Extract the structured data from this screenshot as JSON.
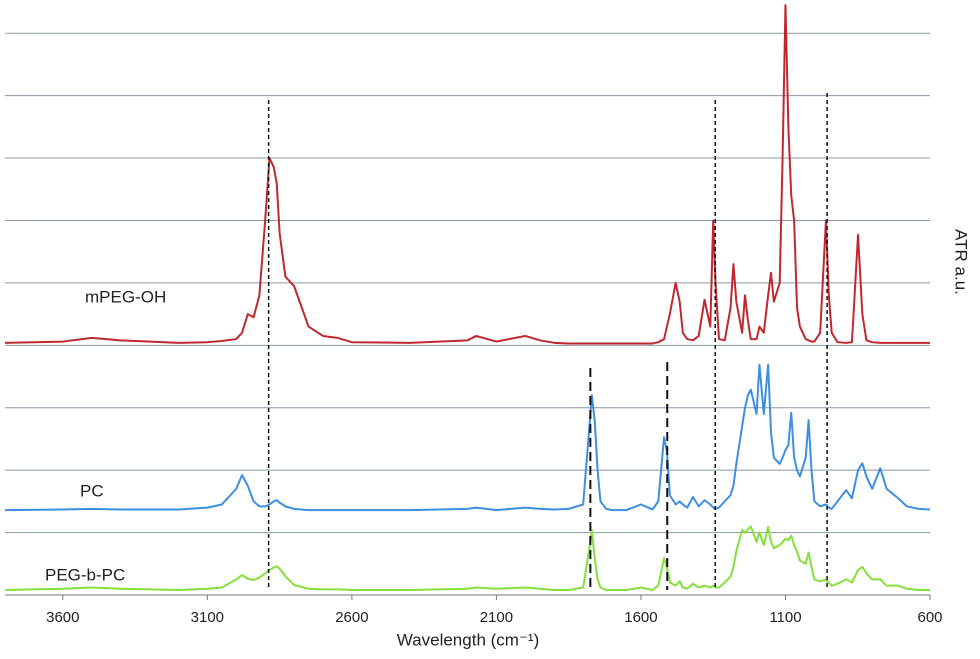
{
  "chart_data": {
    "type": "line",
    "x_label": "Wavelength (cm⁻¹)",
    "y_label": "ATR a.u.",
    "xlim": [
      3800,
      600
    ],
    "xticks": [
      3600,
      3100,
      2600,
      2100,
      1600,
      1100,
      600
    ],
    "ylim": [
      0,
      9.5
    ],
    "yticks": [
      0,
      1,
      2,
      3,
      4,
      5,
      6,
      7,
      8,
      9
    ],
    "grid": true,
    "reference_lines": [
      2888,
      1775,
      1509,
      1343,
      956
    ],
    "x": [
      3800,
      3600,
      3500,
      3400,
      3200,
      3100,
      3050,
      3000,
      2980,
      2960,
      2940,
      2920,
      2900,
      2885,
      2870,
      2860,
      2850,
      2830,
      2800,
      2750,
      2700,
      2650,
      2600,
      2400,
      2200,
      2170,
      2100,
      2000,
      1950,
      1900,
      1850,
      1800,
      1780,
      1770,
      1760,
      1750,
      1740,
      1720,
      1700,
      1650,
      1600,
      1560,
      1540,
      1520,
      1510,
      1500,
      1480,
      1466,
      1455,
      1440,
      1420,
      1400,
      1380,
      1360,
      1350,
      1342,
      1330,
      1310,
      1290,
      1280,
      1270,
      1250,
      1240,
      1230,
      1220,
      1200,
      1190,
      1175,
      1160,
      1150,
      1140,
      1120,
      1110,
      1100,
      1090,
      1080,
      1070,
      1060,
      1050,
      1030,
      1020,
      1010,
      1000,
      980,
      960,
      950,
      940,
      920,
      890,
      870,
      849,
      834,
      820,
      800,
      772,
      750,
      710,
      680,
      640,
      600
    ],
    "series": [
      {
        "name": "mPEG-OH",
        "color": "#c0282f",
        "values": [
          4.04,
          4.06,
          4.12,
          4.08,
          4.04,
          4.05,
          4.07,
          4.1,
          4.2,
          4.5,
          4.45,
          4.8,
          6.0,
          7.0,
          6.85,
          6.6,
          5.8,
          5.1,
          4.95,
          4.3,
          4.15,
          4.12,
          4.05,
          4.04,
          4.08,
          4.15,
          4.06,
          4.15,
          4.08,
          4.04,
          4.03,
          4.03,
          4.03,
          4.03,
          4.03,
          4.03,
          4.03,
          4.03,
          4.03,
          4.03,
          4.03,
          4.03,
          4.05,
          4.1,
          4.3,
          4.5,
          5.0,
          4.7,
          4.2,
          4.1,
          4.08,
          4.15,
          4.73,
          4.3,
          6.0,
          5.0,
          4.1,
          4.08,
          4.6,
          5.3,
          4.7,
          4.2,
          4.8,
          4.4,
          4.1,
          4.1,
          4.3,
          4.2,
          4.8,
          5.16,
          4.7,
          5.0,
          7.0,
          9.45,
          7.5,
          6.4,
          6.0,
          4.6,
          4.3,
          4.1,
          4.08,
          4.06,
          4.06,
          4.2,
          6.0,
          4.8,
          4.2,
          4.05,
          4.04,
          4.05,
          5.77,
          4.5,
          4.08,
          4.05,
          4.04,
          4.04,
          4.04,
          4.04,
          4.04,
          4.04
        ]
      },
      {
        "name": "PC",
        "color": "#3f8fe0",
        "values": [
          1.36,
          1.37,
          1.38,
          1.37,
          1.37,
          1.4,
          1.45,
          1.7,
          1.92,
          1.75,
          1.5,
          1.42,
          1.42,
          1.45,
          1.5,
          1.52,
          1.48,
          1.42,
          1.38,
          1.36,
          1.36,
          1.36,
          1.36,
          1.36,
          1.38,
          1.4,
          1.36,
          1.4,
          1.38,
          1.37,
          1.38,
          1.45,
          2.6,
          3.2,
          2.8,
          2.0,
          1.5,
          1.38,
          1.36,
          1.36,
          1.45,
          1.37,
          1.5,
          2.53,
          2.3,
          1.6,
          1.45,
          1.5,
          1.45,
          1.4,
          1.57,
          1.42,
          1.52,
          1.45,
          1.4,
          1.38,
          1.4,
          1.5,
          1.6,
          1.75,
          2.1,
          2.7,
          3.0,
          3.2,
          3.29,
          2.9,
          3.69,
          2.9,
          3.69,
          2.6,
          2.2,
          2.1,
          2.2,
          2.32,
          2.4,
          2.92,
          2.2,
          2.0,
          1.9,
          2.2,
          2.8,
          2.0,
          1.5,
          1.42,
          1.45,
          1.4,
          1.38,
          1.5,
          1.68,
          1.55,
          2.0,
          2.11,
          1.9,
          1.7,
          2.03,
          1.7,
          1.55,
          1.42,
          1.38,
          1.37
        ]
      },
      {
        "name": "PEG-b-PC",
        "color": "#86e03a",
        "values": [
          0.08,
          0.1,
          0.12,
          0.1,
          0.08,
          0.1,
          0.12,
          0.25,
          0.32,
          0.26,
          0.24,
          0.28,
          0.35,
          0.4,
          0.44,
          0.46,
          0.42,
          0.3,
          0.16,
          0.1,
          0.09,
          0.09,
          0.08,
          0.08,
          0.1,
          0.12,
          0.1,
          0.12,
          0.1,
          0.08,
          0.08,
          0.12,
          0.7,
          1.04,
          0.6,
          0.25,
          0.12,
          0.08,
          0.08,
          0.08,
          0.12,
          0.08,
          0.15,
          0.59,
          0.45,
          0.2,
          0.15,
          0.22,
          0.12,
          0.1,
          0.18,
          0.12,
          0.15,
          0.12,
          0.15,
          0.12,
          0.12,
          0.2,
          0.3,
          0.45,
          0.7,
          1.04,
          1.0,
          1.05,
          1.1,
          0.85,
          1.0,
          0.8,
          1.09,
          0.85,
          0.75,
          0.8,
          0.85,
          0.9,
          0.88,
          0.95,
          0.8,
          0.7,
          0.55,
          0.5,
          0.68,
          0.45,
          0.25,
          0.22,
          0.25,
          0.2,
          0.15,
          0.18,
          0.25,
          0.2,
          0.4,
          0.45,
          0.35,
          0.25,
          0.25,
          0.15,
          0.15,
          0.1,
          0.08,
          0.08
        ]
      }
    ]
  }
}
